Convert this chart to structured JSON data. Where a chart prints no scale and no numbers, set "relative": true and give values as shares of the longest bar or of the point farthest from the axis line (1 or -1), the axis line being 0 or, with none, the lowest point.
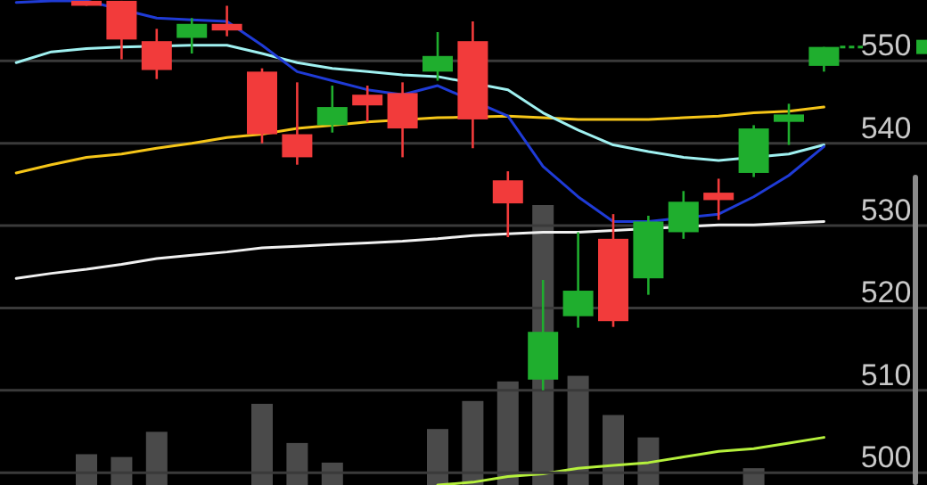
{
  "chart_data": [
    {
      "type": "candlestick",
      "categories": [
        null,
        null,
        null,
        null,
        null,
        null,
        null,
        null,
        null,
        null,
        null,
        null,
        null,
        null,
        null,
        null,
        null,
        null,
        null,
        null,
        null,
        null,
        null,
        null
      ],
      "ohlc": [
        null,
        null,
        [
          557.3,
          557.3,
          556.7,
          556.7
        ],
        [
          557.3,
          557.3,
          550.2,
          552.6
        ],
        [
          552.4,
          553.9,
          547.8,
          548.9
        ],
        [
          552.8,
          555.2,
          550.9,
          554.5
        ],
        [
          554.5,
          556.7,
          553.0,
          553.7
        ],
        [
          548.7,
          549.1,
          540.0,
          541.1
        ],
        [
          541.1,
          547.4,
          537.4,
          538.3
        ],
        [
          542.2,
          547.0,
          541.3,
          544.4
        ],
        [
          545.9,
          547.0,
          542.6,
          544.6
        ],
        [
          546.1,
          547.4,
          538.3,
          541.8
        ],
        [
          548.7,
          553.5,
          547.6,
          550.6
        ],
        [
          552.4,
          554.8,
          539.4,
          542.9
        ],
        [
          535.5,
          536.6,
          528.6,
          532.7
        ],
        [
          511.3,
          523.4,
          510.0,
          517.1
        ],
        [
          519.0,
          529.2,
          517.6,
          522.1
        ],
        [
          528.4,
          531.4,
          517.7,
          518.4
        ],
        [
          523.6,
          531.2,
          521.6,
          530.5
        ],
        [
          529.2,
          534.2,
          528.4,
          532.9
        ],
        [
          534.0,
          535.7,
          530.7,
          533.1
        ],
        [
          536.4,
          542.2,
          535.9,
          541.8
        ],
        [
          542.6,
          544.8,
          539.8,
          543.5
        ],
        [
          549.4,
          551.7,
          548.7,
          551.7
        ]
      ],
      "colors": [
        null,
        null,
        "#f23b3b",
        "#f23b3b",
        "#f23b3b",
        "#1fae2e",
        "#f23b3b",
        "#f23b3b",
        "#f23b3b",
        "#1fae2e",
        "#f23b3b",
        "#f23b3b",
        "#1fae2e",
        "#f23b3b",
        "#f23b3b",
        "#1fae2e",
        "#1fae2e",
        "#f23b3b",
        "#1fae2e",
        "#1fae2e",
        "#f23b3b",
        "#1fae2e",
        "#1fae2e",
        "#1fae2e"
      ],
      "series": [
        {
          "type": "line",
          "color": "#f0f0f0",
          "values": [
            523.6,
            524.2,
            524.7,
            525.3,
            526.0,
            526.4,
            526.8,
            527.3,
            527.5,
            527.7,
            527.9,
            528.1,
            528.4,
            528.8,
            529.0,
            529.2,
            529.2,
            529.4,
            null,
            null,
            530.1,
            530.1,
            530.3,
            530.5
          ]
        },
        {
          "type": "line",
          "color": "#f5c518",
          "values": [
            536.4,
            537.4,
            538.3,
            538.7,
            539.4,
            540.0,
            540.7,
            541.1,
            541.8,
            542.2,
            542.6,
            null,
            543.1,
            null,
            543.3,
            543.1,
            542.9,
            542.9,
            542.9,
            543.1,
            543.3,
            543.7,
            543.9,
            544.4
          ]
        },
        {
          "type": "line",
          "color": "#9ff0f0",
          "values": [
            549.8,
            551.1,
            551.5,
            551.7,
            null,
            551.9,
            551.9,
            550.9,
            549.8,
            549.1,
            548.7,
            548.3,
            548.1,
            null,
            546.5,
            543.7,
            541.6,
            539.8,
            539.0,
            538.3,
            537.9,
            null,
            538.7,
            539.8
          ]
        },
        {
          "type": "line",
          "color": "#1f3bd6",
          "values": [
            557.1,
            557.3,
            557.3,
            null,
            555.2,
            555.0,
            554.8,
            551.9,
            548.7,
            547.6,
            546.5,
            545.9,
            547.0,
            null,
            543.3,
            537.2,
            533.5,
            530.5,
            530.5,
            null,
            531.4,
            533.5,
            536.1,
            539.6
          ]
        }
      ],
      "ylim": [
        498.5,
        557.4
      ],
      "yticks": [
        500,
        510,
        520,
        530,
        540,
        550
      ],
      "grid": "y",
      "tick_labels": "y"
    },
    {
      "type": "bar",
      "relative": true,
      "categories": [
        null,
        null,
        null,
        null,
        null,
        null,
        null,
        null,
        null,
        null,
        null,
        null,
        null,
        null,
        null,
        null,
        null,
        null,
        null,
        null,
        null,
        null,
        null,
        null
      ],
      "series": [
        {
          "type": "bar",
          "color": "#4a4a4a",
          "values": [
            null,
            null,
            0.11,
            0.1,
            0.19,
            null,
            null,
            0.29,
            0.15,
            0.08,
            null,
            null,
            0.2,
            0.3,
            0.37,
            1,
            0.39,
            0.25,
            0.17,
            null,
            null,
            0.06,
            null,
            null
          ]
        },
        {
          "type": "line",
          "color": "#b5f03c",
          "values": [
            null,
            null,
            null,
            null,
            null,
            null,
            null,
            null,
            null,
            null,
            null,
            null,
            0,
            0.01,
            0.03,
            0.04,
            0.06,
            0.07,
            0.08,
            0.1,
            0.12,
            0.13,
            0.15,
            0.17
          ]
        }
      ]
    }
  ]
}
